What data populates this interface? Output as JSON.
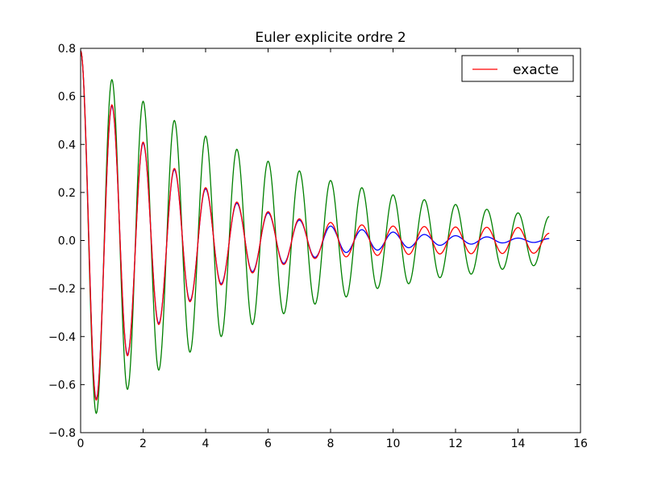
{
  "chart_data": {
    "type": "line",
    "title": "Euler explicite ordre 2",
    "xlabel": "",
    "ylabel": "",
    "xlim": [
      0,
      16
    ],
    "ylim": [
      -0.8,
      0.8
    ],
    "xticks": [
      0,
      2,
      4,
      6,
      8,
      10,
      12,
      14,
      16
    ],
    "yticks": [
      -0.8,
      -0.6,
      -0.4,
      -0.2,
      0.0,
      0.2,
      0.4,
      0.6,
      0.8
    ],
    "xtick_labels": [
      "0",
      "2",
      "4",
      "6",
      "8",
      "10",
      "12",
      "14",
      "16"
    ],
    "ytick_labels": [
      "−0.8",
      "−0.6",
      "−0.4",
      "−0.2",
      "0.0",
      "0.2",
      "0.4",
      "0.6",
      "0.8"
    ],
    "grid": false,
    "legend_position": "top-right",
    "series": [
      {
        "name": "",
        "color": "#008000",
        "points": [
          [
            0.0,
            0.79
          ],
          [
            0.5,
            -0.72
          ],
          [
            1.0,
            0.67
          ],
          [
            1.5,
            -0.62
          ],
          [
            2.0,
            0.58
          ],
          [
            2.5,
            -0.54
          ],
          [
            3.0,
            0.5
          ],
          [
            3.5,
            -0.465
          ],
          [
            4.0,
            0.435
          ],
          [
            4.5,
            -0.4
          ],
          [
            5.0,
            0.38
          ],
          [
            5.5,
            -0.35
          ],
          [
            6.0,
            0.33
          ],
          [
            6.5,
            -0.305
          ],
          [
            7.0,
            0.29
          ],
          [
            7.5,
            -0.265
          ],
          [
            8.0,
            0.25
          ],
          [
            8.5,
            -0.235
          ],
          [
            9.0,
            0.22
          ],
          [
            9.5,
            -0.2
          ],
          [
            10.0,
            0.19
          ],
          [
            10.5,
            -0.18
          ],
          [
            11.0,
            0.17
          ],
          [
            11.5,
            -0.155
          ],
          [
            12.0,
            0.15
          ],
          [
            12.5,
            -0.14
          ],
          [
            13.0,
            0.13
          ],
          [
            13.5,
            -0.12
          ],
          [
            14.0,
            0.115
          ],
          [
            14.5,
            -0.105
          ],
          [
            15.0,
            0.1
          ]
        ]
      },
      {
        "name": "",
        "color": "#0000ff",
        "points": [
          [
            0.0,
            0.79
          ],
          [
            0.5,
            -0.66
          ],
          [
            1.0,
            0.56
          ],
          [
            1.5,
            -0.475
          ],
          [
            2.0,
            0.405
          ],
          [
            2.5,
            -0.345
          ],
          [
            3.0,
            0.295
          ],
          [
            3.5,
            -0.25
          ],
          [
            4.0,
            0.215
          ],
          [
            4.5,
            -0.18
          ],
          [
            5.0,
            0.155
          ],
          [
            5.5,
            -0.13
          ],
          [
            6.0,
            0.115
          ],
          [
            6.5,
            -0.095
          ],
          [
            7.0,
            0.085
          ],
          [
            7.5,
            -0.07
          ],
          [
            8.0,
            0.06
          ],
          [
            8.5,
            -0.05
          ],
          [
            9.0,
            0.045
          ],
          [
            9.5,
            -0.04
          ],
          [
            10.0,
            0.035
          ],
          [
            10.5,
            -0.03
          ],
          [
            11.0,
            0.025
          ],
          [
            11.5,
            -0.02
          ],
          [
            12.0,
            0.02
          ],
          [
            12.5,
            -0.015
          ],
          [
            13.0,
            0.015
          ],
          [
            13.5,
            -0.01
          ],
          [
            14.0,
            0.01
          ],
          [
            14.5,
            -0.008
          ],
          [
            15.0,
            0.008
          ]
        ]
      },
      {
        "name": "exacte",
        "color": "#ff0000",
        "points": [
          [
            0.0,
            0.79
          ],
          [
            0.5,
            -0.665
          ],
          [
            1.0,
            0.565
          ],
          [
            1.5,
            -0.48
          ],
          [
            2.0,
            0.41
          ],
          [
            2.5,
            -0.35
          ],
          [
            3.0,
            0.3
          ],
          [
            3.5,
            -0.255
          ],
          [
            4.0,
            0.22
          ],
          [
            4.5,
            -0.185
          ],
          [
            5.0,
            0.16
          ],
          [
            5.5,
            -0.135
          ],
          [
            6.0,
            0.12
          ],
          [
            6.5,
            -0.1
          ],
          [
            7.0,
            0.09
          ],
          [
            7.5,
            -0.075
          ],
          [
            8.0,
            0.075
          ],
          [
            8.5,
            -0.068
          ],
          [
            9.0,
            0.065
          ],
          [
            9.5,
            -0.062
          ],
          [
            10.0,
            0.06
          ],
          [
            10.5,
            -0.058
          ],
          [
            11.0,
            0.058
          ],
          [
            11.5,
            -0.056
          ],
          [
            12.0,
            0.056
          ],
          [
            12.5,
            -0.055
          ],
          [
            13.0,
            0.055
          ],
          [
            13.5,
            -0.054
          ],
          [
            14.0,
            0.054
          ],
          [
            14.5,
            -0.053
          ],
          [
            15.0,
            0.03
          ]
        ]
      }
    ]
  }
}
